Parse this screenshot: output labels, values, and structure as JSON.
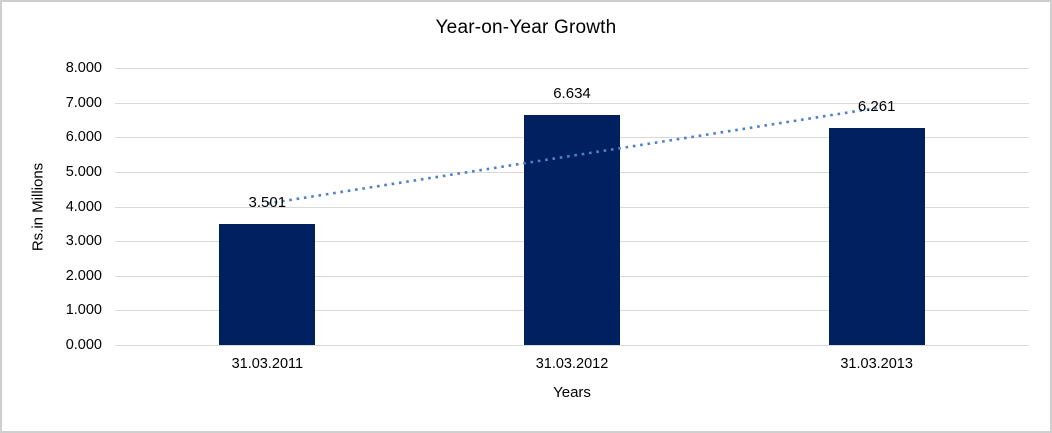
{
  "chart": {
    "colors": {
      "bar": "#002060",
      "trendline": "#4E81C4",
      "gridline": "#D9D9D9",
      "text": "#000000",
      "frame_border": "#CFCFCF",
      "background": "#FFFFFF"
    }
  },
  "chart_data": {
    "type": "bar",
    "title": "Year-on-Year Growth",
    "categories": [
      "31.03.2011",
      "31.03.2012",
      "31.03.2013"
    ],
    "values": [
      3.501,
      6.634,
      6.261
    ],
    "data_labels": [
      "3.501",
      "6.634",
      "6.261"
    ],
    "xlabel": "Years",
    "ylabel": "Rs.in Millions",
    "ylim": [
      0,
      8
    ],
    "y_tick_interval": 1,
    "y_tick_labels": [
      "8.000",
      "7.000",
      "6.000",
      "5.000",
      "4.000",
      "3.000",
      "2.000",
      "1.000",
      "0.000"
    ],
    "grid": "horizontal",
    "legend": "none",
    "trendline": {
      "type": "linear",
      "style": "dotted",
      "start_value": 4.085,
      "end_value": 6.845
    }
  }
}
